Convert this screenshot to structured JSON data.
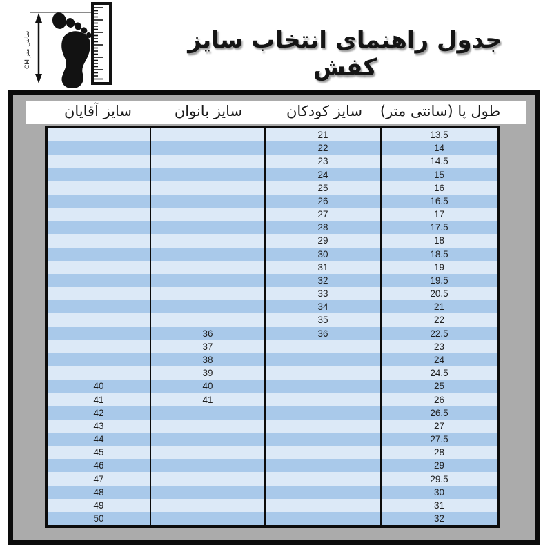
{
  "page": {
    "title": "جدول راهنمای انتخاب سایز کفش"
  },
  "measure_icon": {
    "label": "CM سانتی متر"
  },
  "colors": {
    "panel_gray": "#ababab",
    "border_black": "#0c0c0c",
    "row_light": "#dce9f7",
    "row_medium": "#a9c9ea",
    "header_strip": "#ffffff"
  },
  "table": {
    "headers": {
      "foot_length": "طول پا (سانتی متر)",
      "kids": "سایز کودکان",
      "women": "سایز بانوان",
      "men": "سایز آقایان"
    },
    "rows": [
      {
        "foot": "13.5",
        "kids": "21",
        "women": "",
        "men": ""
      },
      {
        "foot": "14",
        "kids": "22",
        "women": "",
        "men": ""
      },
      {
        "foot": "14.5",
        "kids": "23",
        "women": "",
        "men": ""
      },
      {
        "foot": "15",
        "kids": "24",
        "women": "",
        "men": ""
      },
      {
        "foot": "16",
        "kids": "25",
        "women": "",
        "men": ""
      },
      {
        "foot": "16.5",
        "kids": "26",
        "women": "",
        "men": ""
      },
      {
        "foot": "17",
        "kids": "27",
        "women": "",
        "men": ""
      },
      {
        "foot": "17.5",
        "kids": "28",
        "women": "",
        "men": ""
      },
      {
        "foot": "18",
        "kids": "29",
        "women": "",
        "men": ""
      },
      {
        "foot": "18.5",
        "kids": "30",
        "women": "",
        "men": ""
      },
      {
        "foot": "19",
        "kids": "31",
        "women": "",
        "men": ""
      },
      {
        "foot": "19.5",
        "kids": "32",
        "women": "",
        "men": ""
      },
      {
        "foot": "20.5",
        "kids": "33",
        "women": "",
        "men": ""
      },
      {
        "foot": "21",
        "kids": "34",
        "women": "",
        "men": ""
      },
      {
        "foot": "22",
        "kids": "35",
        "women": "",
        "men": ""
      },
      {
        "foot": "22.5",
        "kids": "36",
        "women": "36",
        "men": ""
      },
      {
        "foot": "23",
        "kids": "",
        "women": "37",
        "men": ""
      },
      {
        "foot": "24",
        "kids": "",
        "women": "38",
        "men": ""
      },
      {
        "foot": "24.5",
        "kids": "",
        "women": "39",
        "men": ""
      },
      {
        "foot": "25",
        "kids": "",
        "women": "40",
        "men": "40"
      },
      {
        "foot": "26",
        "kids": "",
        "women": "41",
        "men": "41"
      },
      {
        "foot": "26.5",
        "kids": "",
        "women": "",
        "men": "42"
      },
      {
        "foot": "27",
        "kids": "",
        "women": "",
        "men": "43"
      },
      {
        "foot": "27.5",
        "kids": "",
        "women": "",
        "men": "44"
      },
      {
        "foot": "28",
        "kids": "",
        "women": "",
        "men": "45"
      },
      {
        "foot": "29",
        "kids": "",
        "women": "",
        "men": "46"
      },
      {
        "foot": "29.5",
        "kids": "",
        "women": "",
        "men": "47"
      },
      {
        "foot": "30",
        "kids": "",
        "women": "",
        "men": "48"
      },
      {
        "foot": "31",
        "kids": "",
        "women": "",
        "men": "49"
      },
      {
        "foot": "32",
        "kids": "",
        "women": "",
        "men": "50"
      }
    ]
  }
}
